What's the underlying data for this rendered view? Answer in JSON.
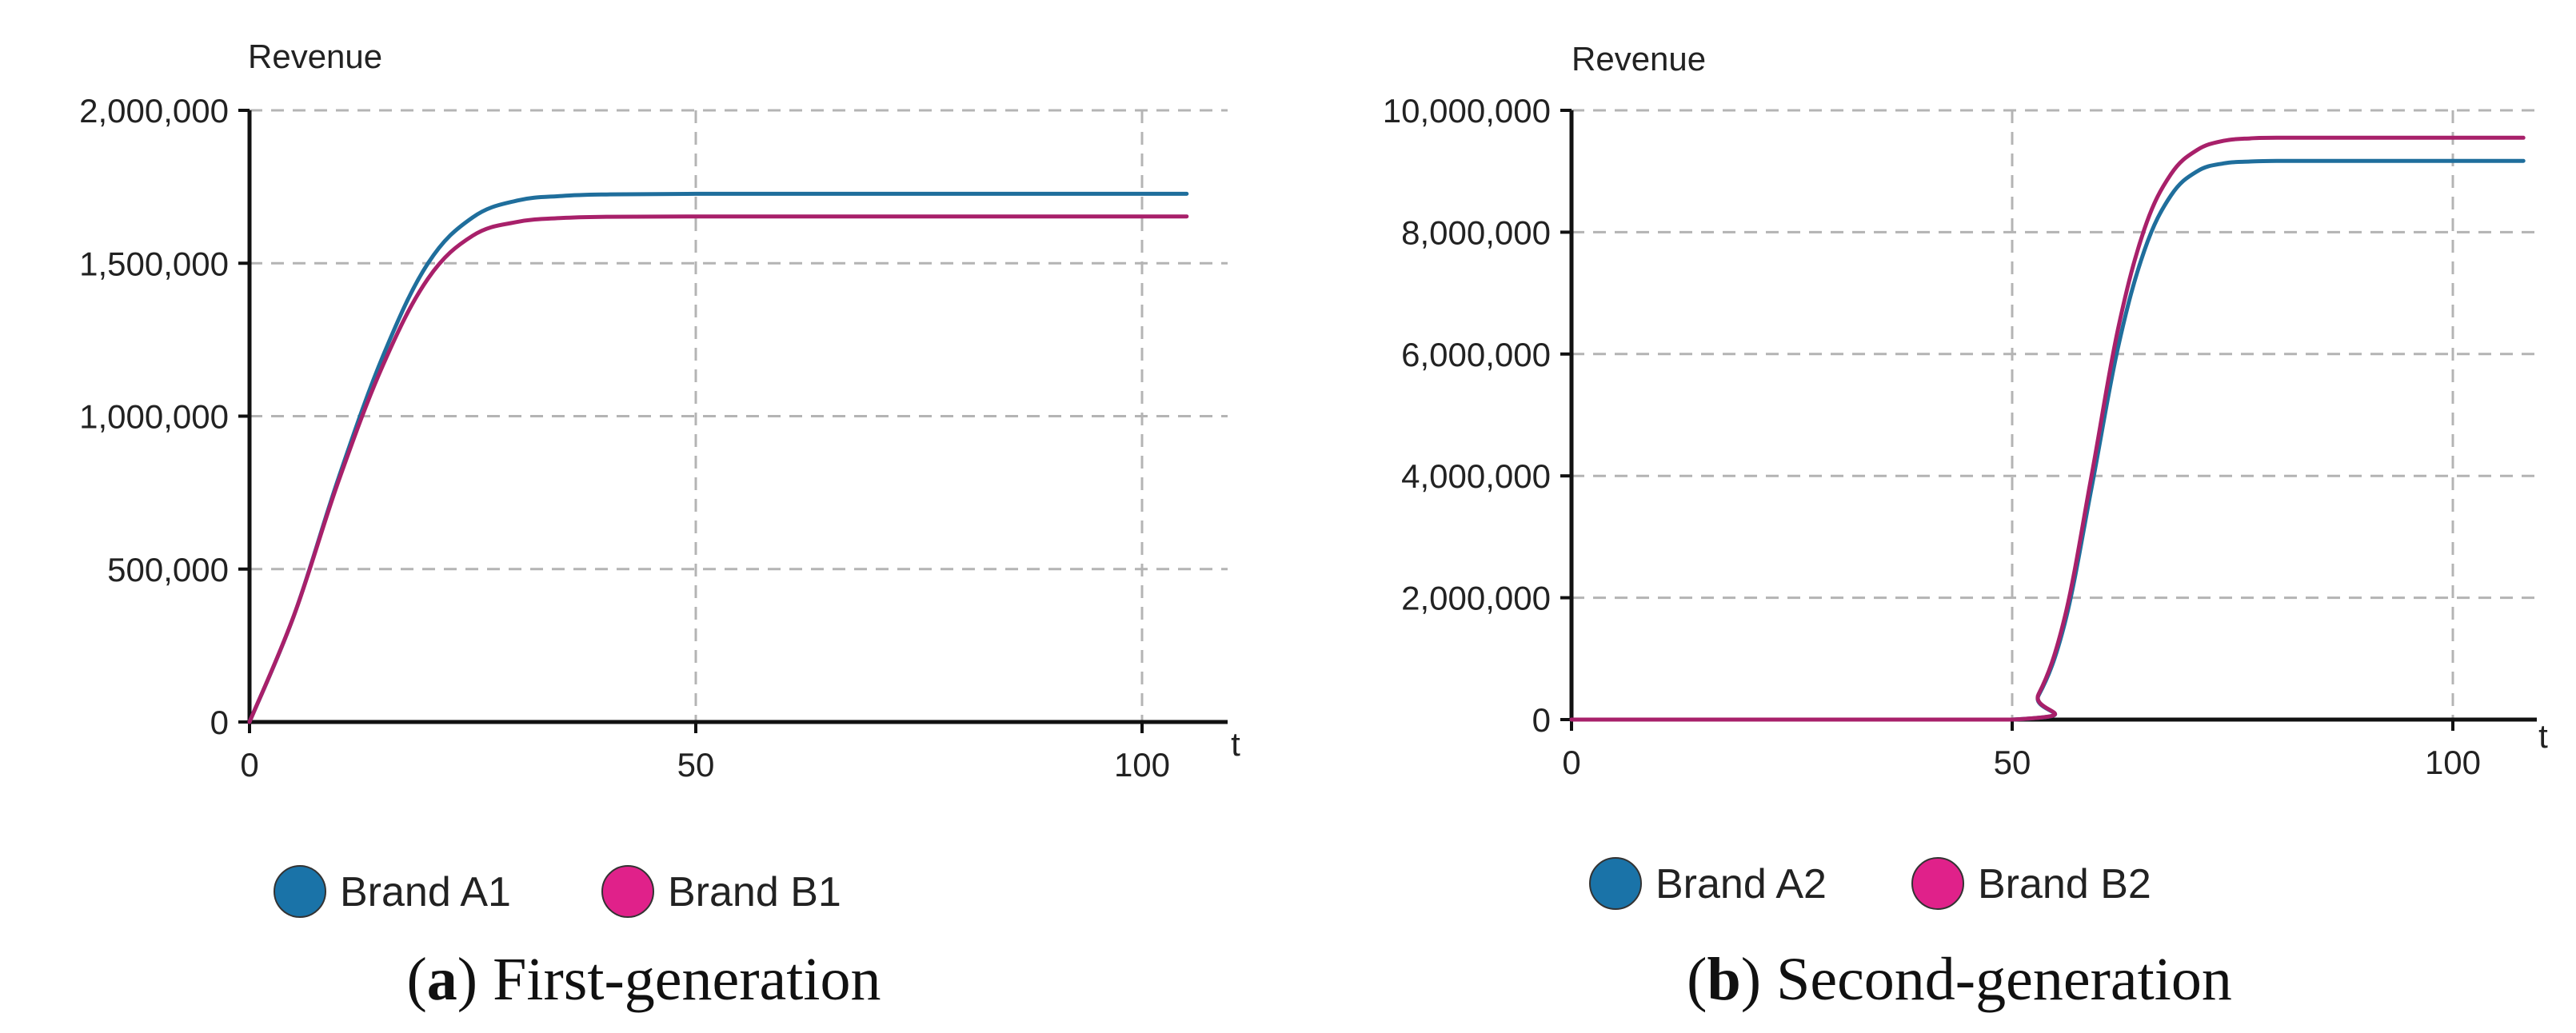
{
  "chart_data": [
    {
      "type": "line",
      "ylabel": "Revenue",
      "xlabel": "t",
      "xlim": [
        0,
        105
      ],
      "ylim": [
        0,
        2000000
      ],
      "x_ticks": [
        0,
        50,
        100
      ],
      "x_tick_labels": [
        "0",
        "50",
        "100"
      ],
      "y_ticks": [
        0,
        500000,
        1000000,
        1500000,
        2000000
      ],
      "y_tick_labels": [
        "0",
        "500,000",
        "1,000,000",
        "1,500,000",
        "2,000,000"
      ],
      "grid": true,
      "legend_position": "bottom",
      "series": [
        {
          "name": "Brand A1",
          "color": "#1f6e9c",
          "x": [
            0,
            5,
            10,
            15,
            20,
            25,
            30,
            35,
            40,
            50,
            60,
            80,
            105
          ],
          "values": [
            0,
            350000,
            800000,
            1200000,
            1500000,
            1650000,
            1705000,
            1720000,
            1725000,
            1727000,
            1727000,
            1727000,
            1727000
          ]
        },
        {
          "name": "Brand B1",
          "color": "#a8206a",
          "x": [
            0,
            5,
            10,
            15,
            20,
            25,
            30,
            35,
            40,
            50,
            60,
            80,
            105
          ],
          "values": [
            0,
            350000,
            790000,
            1170000,
            1450000,
            1590000,
            1635000,
            1648000,
            1652000,
            1653000,
            1653000,
            1653000,
            1653000
          ]
        }
      ],
      "legend": [
        {
          "label": "Brand A1",
          "color": "#1a73a8"
        },
        {
          "label": "Brand B1",
          "color": "#e0218a"
        }
      ],
      "caption": {
        "letter": "a",
        "text": "First-generation"
      }
    },
    {
      "type": "line",
      "ylabel": "Revenue",
      "xlabel": "t",
      "xlim": [
        0,
        108
      ],
      "ylim": [
        0,
        10000000
      ],
      "x_ticks": [
        0,
        50,
        100
      ],
      "x_tick_labels": [
        "0",
        "50",
        "100"
      ],
      "y_ticks": [
        0,
        2000000,
        4000000,
        6000000,
        8000000,
        10000000
      ],
      "y_tick_labels": [
        "0",
        "2,000,000",
        "4,000,000",
        "6,000,000",
        "8,000,000",
        "10,000,000"
      ],
      "grid": true,
      "legend_position": "bottom",
      "series": [
        {
          "name": "Brand A2",
          "color": "#1f6e9c",
          "x": [
            0,
            50,
            53,
            56,
            59,
            62,
            65,
            68,
            71,
            74,
            77,
            80,
            90,
            108
          ],
          "values": [
            0,
            0,
            400000,
            1600000,
            3800000,
            6100000,
            7700000,
            8600000,
            9000000,
            9130000,
            9160000,
            9170000,
            9170000,
            9170000
          ]
        },
        {
          "name": "Brand B2",
          "color": "#a8206a",
          "x": [
            0,
            50,
            53,
            56,
            59,
            62,
            65,
            68,
            71,
            74,
            77,
            80,
            90,
            108
          ],
          "values": [
            0,
            0,
            420000,
            1700000,
            4000000,
            6400000,
            8050000,
            8950000,
            9350000,
            9500000,
            9540000,
            9550000,
            9550000,
            9550000
          ]
        }
      ],
      "legend": [
        {
          "label": "Brand A2",
          "color": "#1a73a8"
        },
        {
          "label": "Brand B2",
          "color": "#e0218a"
        }
      ],
      "caption": {
        "letter": "b",
        "text": "Second-generation"
      }
    }
  ]
}
